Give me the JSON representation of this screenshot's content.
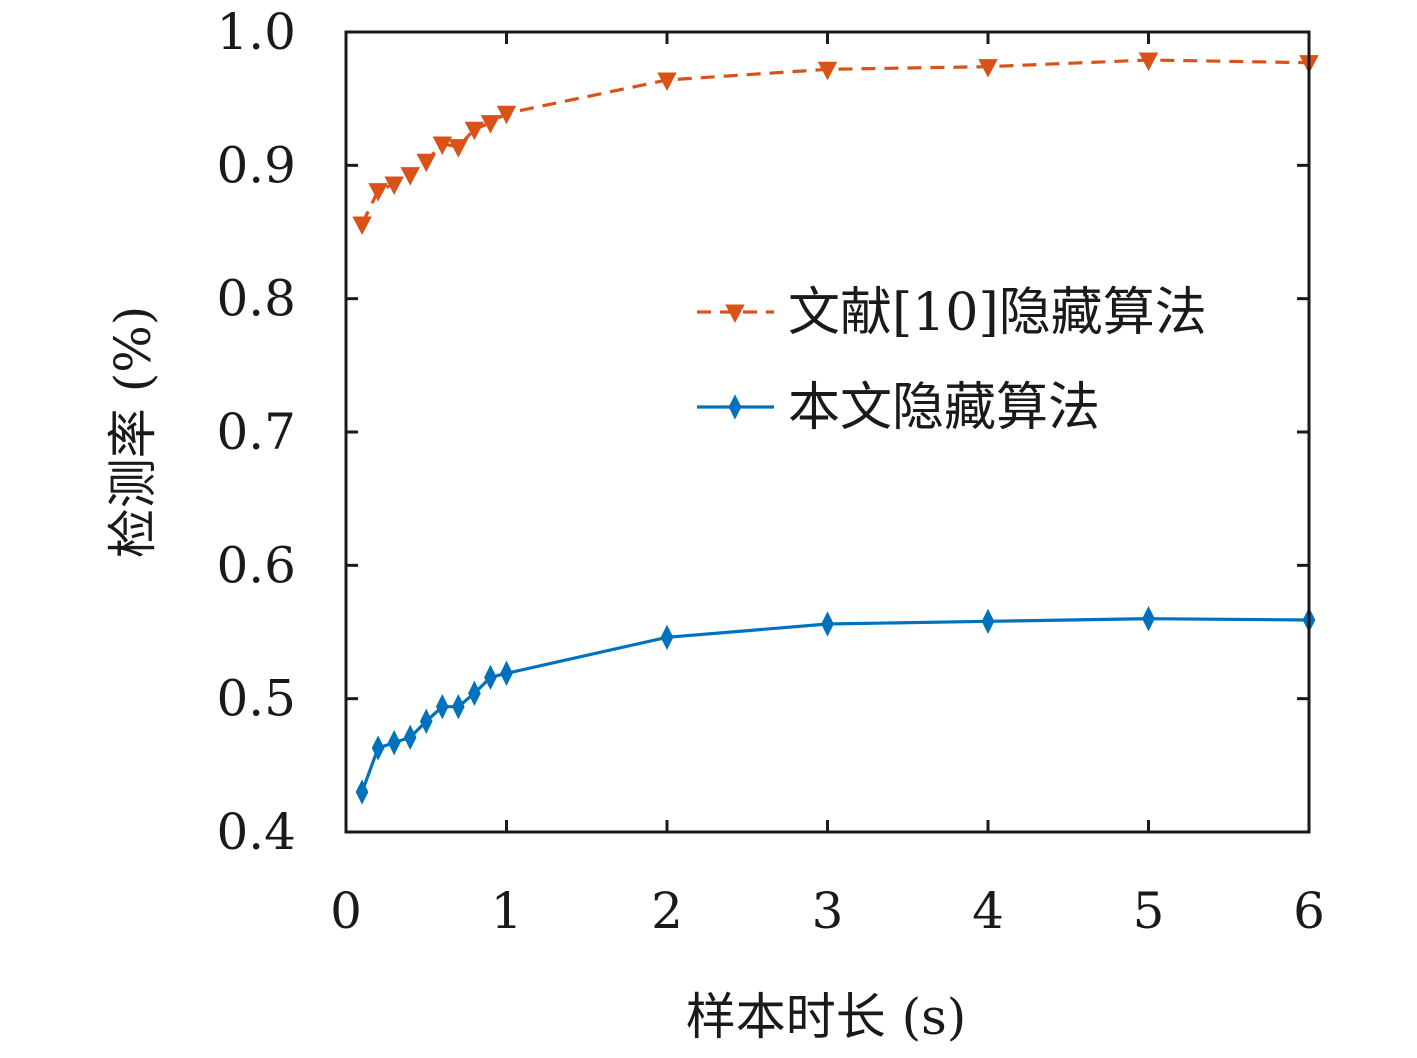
{
  "chart_data": {
    "type": "line",
    "xlabel": "样本时长 (s)",
    "ylabel": "检测率 (%)",
    "xlim": [
      0,
      6
    ],
    "ylim": [
      0.4,
      1.0
    ],
    "xticks": [
      0,
      1,
      2,
      3,
      4,
      5,
      6
    ],
    "xtick_labels": [
      "0",
      "1",
      "2",
      "3",
      "4",
      "5",
      "6"
    ],
    "yticks": [
      0.4,
      0.5,
      0.6,
      0.7,
      0.8,
      0.9,
      1.0
    ],
    "ytick_labels": [
      "0.4",
      "0.5",
      "0.6",
      "0.7",
      "0.8",
      "0.9",
      "1.0"
    ],
    "grid": false,
    "legend_position": "center-right",
    "series": [
      {
        "name": "文献[10]隐藏算法",
        "color": "#d95319",
        "line_style": "dashed",
        "marker": "triangle-down",
        "x": [
          0.1,
          0.2,
          0.3,
          0.4,
          0.5,
          0.6,
          0.7,
          0.8,
          0.9,
          1.0,
          2,
          3,
          4,
          5,
          6
        ],
        "y": [
          0.856,
          0.881,
          0.886,
          0.893,
          0.903,
          0.916,
          0.914,
          0.927,
          0.932,
          0.939,
          0.964,
          0.972,
          0.974,
          0.979,
          0.977
        ]
      },
      {
        "name": "本文隐藏算法",
        "color": "#0072bd",
        "line_style": "solid",
        "marker": "diamond",
        "x": [
          0.1,
          0.2,
          0.3,
          0.4,
          0.5,
          0.6,
          0.7,
          0.8,
          0.9,
          1.0,
          2,
          3,
          4,
          5,
          6
        ],
        "y": [
          0.43,
          0.463,
          0.467,
          0.471,
          0.483,
          0.494,
          0.494,
          0.504,
          0.516,
          0.519,
          0.546,
          0.556,
          0.558,
          0.56,
          0.559
        ]
      }
    ]
  }
}
